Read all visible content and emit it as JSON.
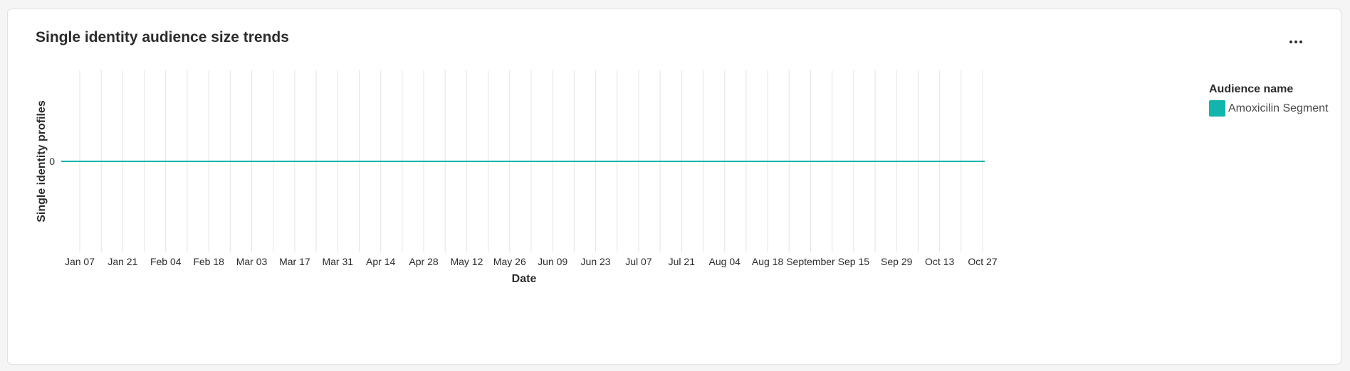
{
  "card": {
    "title": "Single identity audience size trends",
    "more_icon": "more-horizontal-icon"
  },
  "chart_data": {
    "type": "line",
    "title": "Single identity audience size trends",
    "xlabel": "Date",
    "ylabel": "Single identity profiles",
    "x_tick_labels": [
      "Jan 07",
      "Jan 21",
      "Feb 04",
      "Feb 18",
      "Mar 03",
      "Mar 17",
      "Mar 31",
      "Apr 14",
      "Apr 28",
      "May 12",
      "May 26",
      "Jun 09",
      "Jun 23",
      "Jul 07",
      "Jul 21",
      "Aug 04",
      "Aug 18",
      "September",
      "Sep 15",
      "Sep 29",
      "Oct 13",
      "Oct 27"
    ],
    "y_tick_labels": [
      "0"
    ],
    "vertical_gridlines": "weekly",
    "horizontal_gridlines": false,
    "legend_title": "Audience name",
    "legend_position": "right",
    "series": [
      {
        "name": "Amoxicilin Segment",
        "color": "#12b5ae",
        "values": [
          0,
          0,
          0,
          0,
          0,
          0,
          0,
          0,
          0,
          0,
          0,
          0,
          0,
          0,
          0,
          0,
          0,
          0,
          0,
          0,
          0,
          0,
          0,
          0,
          0,
          0,
          0,
          0,
          0,
          0,
          0,
          0,
          0,
          0,
          0,
          0,
          0,
          0,
          0,
          0,
          0,
          0,
          0,
          0,
          0
        ]
      }
    ]
  },
  "colors": {
    "series": "#12b5ae",
    "gridline": "#e4e4e4",
    "text": "#2c2c2c"
  }
}
